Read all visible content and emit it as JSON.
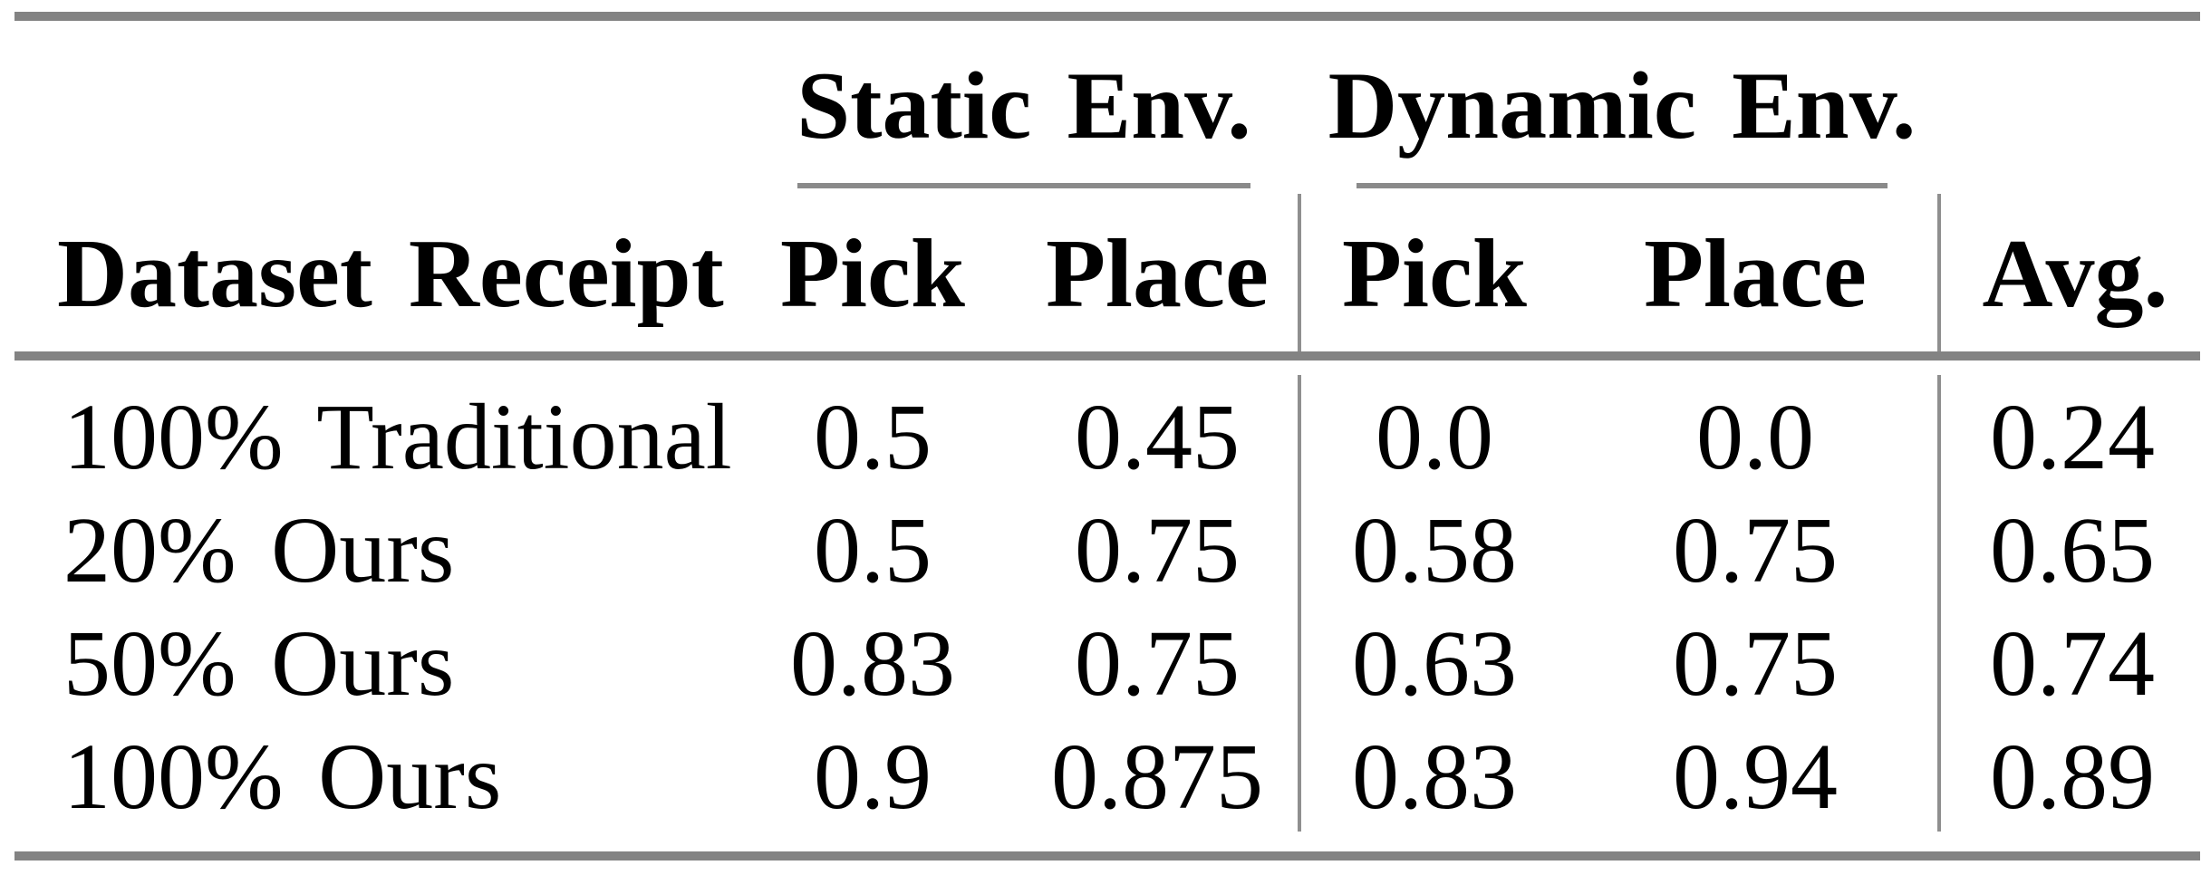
{
  "table": {
    "header_groups": {
      "static": {
        "label": "Static Env."
      },
      "dynamic": {
        "label": "Dynamic Env."
      }
    },
    "columns": {
      "row_header": "Dataset Receipt",
      "static_pick": "Pick",
      "static_place": "Place",
      "dynamic_pick": "Pick",
      "dynamic_place": "Place",
      "avg": "Avg."
    },
    "rows": [
      {
        "label": "100% Traditional",
        "static_pick": "0.5",
        "static_place": "0.45",
        "dynamic_pick": "0.0",
        "dynamic_place": "0.0",
        "avg": "0.24"
      },
      {
        "label": "20% Ours",
        "static_pick": "0.5",
        "static_place": "0.75",
        "dynamic_pick": "0.58",
        "dynamic_place": "0.75",
        "avg": "0.65"
      },
      {
        "label": "50% Ours",
        "static_pick": "0.83",
        "static_place": "0.75",
        "dynamic_pick": "0.63",
        "dynamic_place": "0.75",
        "avg": "0.74"
      },
      {
        "label": "100% Ours",
        "static_pick": "0.9",
        "static_place": "0.875",
        "dynamic_pick": "0.83",
        "dynamic_place": "0.94",
        "avg": "0.89"
      }
    ]
  },
  "colors": {
    "background": "#ffffff",
    "text": "#000000",
    "rule_gray": "#838383",
    "cmidrule_gray": "#8a8a8a",
    "vrule_gray": "#8f8f8f"
  },
  "chart_data": {
    "type": "table",
    "title": "",
    "column_groups": [
      "",
      "Static Env.",
      "Static Env.",
      "Dynamic Env.",
      "Dynamic Env.",
      ""
    ],
    "columns": [
      "Dataset Receipt",
      "Pick",
      "Place",
      "Pick",
      "Place",
      "Avg."
    ],
    "rows": [
      [
        "100% Traditional",
        0.5,
        0.45,
        0.0,
        0.0,
        0.24
      ],
      [
        "20% Ours",
        0.5,
        0.75,
        0.58,
        0.75,
        0.65
      ],
      [
        "50% Ours",
        0.83,
        0.75,
        0.63,
        0.75,
        0.74
      ],
      [
        "100% Ours",
        0.9,
        0.875,
        0.83,
        0.94,
        0.89
      ]
    ]
  }
}
